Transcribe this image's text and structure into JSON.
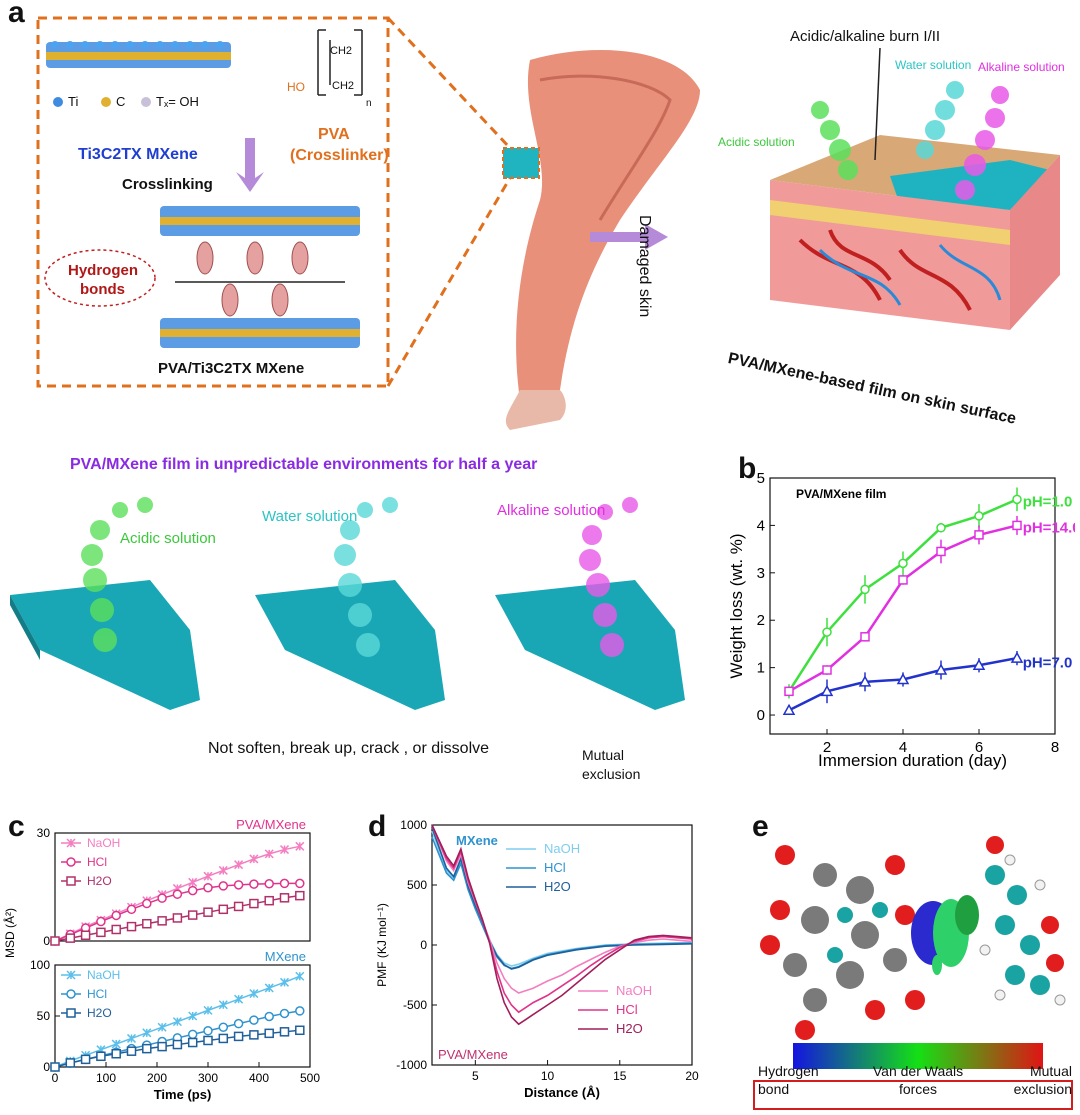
{
  "panels": {
    "a": {
      "label": "a",
      "legend_ti": "Ti",
      "legend_c": "C",
      "legend_tx": "Tₓ= OH",
      "mxene_name": "Ti3C2TX MXene",
      "pva_name": "PVA",
      "pva_role": "(Crosslinker)",
      "pva_struct_ch2a": "CH2",
      "pva_struct_ch2b": "CH2",
      "pva_struct_ho": "HO",
      "pva_struct_n": "n",
      "crosslinking": "Crosslinking",
      "hbond_line1": "Hydrogen",
      "hbond_line2": "bonds",
      "composite_name": "PVA/Ti3C2TX MXene",
      "burn_label": "Acidic/alkaline burn I/II",
      "water_solution": "Water solution",
      "alkaline_solution": "Alkaline solution",
      "acidic_solution": "Acidic solution",
      "damaged_skin": "Damaged skin",
      "film_caption": "PVA/MXene-based film on skin surface",
      "env_title": "PVA/MXene film in unpredictable environments for half a year",
      "env_acidic": "Acidic solution",
      "env_water": "Water solution",
      "env_alkaline": "Alkaline solution",
      "not_soften": "Not soften, break up, crack , or dissolve",
      "mutual_exclusion": "Mutual exclusion"
    },
    "b_label": "b",
    "c_label": "c",
    "d_label": "d",
    "e_label": "e",
    "e": {
      "hbond": "Hydrogen bond",
      "vdw": "Van der Waals forces",
      "mutual": "Mutual exclusion"
    }
  },
  "colors": {
    "orange_dash": "#e0701d",
    "acidic_green": "#3cc83c",
    "water_cyan": "#2cc4c4",
    "alkaline_magenta": "#e030e0",
    "blue_text": "#1f3fd0",
    "purple_text": "#8a2be2",
    "dark_red": "#b01818",
    "film_teal": "#1aa7b5"
  },
  "chart_data": [
    {
      "id": "b",
      "type": "line",
      "title": "PVA/MXene film",
      "xlabel": "Immersion duration (day)",
      "ylabel": "Weight loss (wt. %)",
      "xlim": [
        0.5,
        8
      ],
      "ylim": [
        -0.4,
        5
      ],
      "xticks": [
        2,
        4,
        6,
        8
      ],
      "yticks": [
        0,
        1,
        2,
        3,
        4,
        5
      ],
      "x": [
        1,
        2,
        3,
        4,
        5,
        6,
        7
      ],
      "series": [
        {
          "name": "pH=1.0",
          "color": "#3ee03e",
          "marker": "circle",
          "values": [
            0.5,
            1.75,
            2.65,
            3.2,
            3.95,
            4.2,
            4.55
          ],
          "errors": [
            0.15,
            0.3,
            0.3,
            0.25,
            0.1,
            0.25,
            0.25
          ]
        },
        {
          "name": "pH=14.0",
          "color": "#e030e0",
          "marker": "square",
          "values": [
            0.5,
            0.95,
            1.65,
            2.85,
            3.45,
            3.8,
            4.0
          ],
          "errors": [
            0.1,
            0.1,
            0.1,
            0.1,
            0.25,
            0.2,
            0.2
          ]
        },
        {
          "name": "pH=7.0",
          "color": "#2233cc",
          "marker": "triangle",
          "values": [
            0.1,
            0.5,
            0.7,
            0.75,
            0.95,
            1.05,
            1.2
          ],
          "errors": [
            0.1,
            0.25,
            0.2,
            0.15,
            0.2,
            0.15,
            0.15
          ]
        }
      ]
    },
    {
      "id": "c-top",
      "type": "line",
      "title": "PVA/MXene",
      "xlabel": "",
      "ylabel": "",
      "xlim": [
        0,
        500
      ],
      "ylim": [
        0,
        30
      ],
      "yticks": [
        0,
        30
      ],
      "x": [
        0,
        30,
        60,
        90,
        120,
        150,
        180,
        210,
        240,
        270,
        300,
        330,
        360,
        390,
        420,
        450,
        480
      ],
      "series": [
        {
          "name": "NaOH",
          "color": "#f37ec0",
          "marker": "star",
          "values": [
            0,
            2.0,
            4.0,
            5.8,
            7.6,
            9.4,
            11.2,
            12.9,
            14.6,
            16.3,
            18.0,
            19.6,
            21.2,
            22.8,
            24.2,
            25.4,
            26.3
          ]
        },
        {
          "name": "HCl",
          "color": "#e0338a",
          "marker": "circle",
          "values": [
            0,
            1.8,
            3.6,
            5.4,
            7.1,
            8.8,
            10.4,
            11.9,
            13.0,
            14.0,
            14.8,
            15.3,
            15.6,
            15.8,
            15.9,
            16.0,
            16.0
          ]
        },
        {
          "name": "H2O",
          "color": "#b0306a",
          "marker": "square",
          "values": [
            0,
            0.8,
            1.6,
            2.4,
            3.2,
            4.0,
            4.8,
            5.6,
            6.4,
            7.2,
            8.0,
            8.8,
            9.6,
            10.4,
            11.2,
            12.0,
            12.6
          ]
        }
      ]
    },
    {
      "id": "c-bottom",
      "type": "line",
      "title": "MXene",
      "xlabel": "Time (ps)",
      "ylabel": "MSD (Å²)",
      "xlim": [
        0,
        500
      ],
      "ylim": [
        0,
        100
      ],
      "xticks": [
        0,
        100,
        200,
        300,
        400,
        500
      ],
      "yticks": [
        0,
        50,
        100
      ],
      "x": [
        0,
        30,
        60,
        90,
        120,
        150,
        180,
        210,
        240,
        270,
        300,
        330,
        360,
        390,
        420,
        450,
        480
      ],
      "series": [
        {
          "name": "NaOH",
          "color": "#5bbfea",
          "marker": "star",
          "values": [
            0,
            6,
            11.5,
            17,
            22.5,
            28,
            33.5,
            39,
            44.5,
            50,
            55.5,
            61,
            66.5,
            72,
            77.5,
            83,
            89
          ]
        },
        {
          "name": "HCl",
          "color": "#2f93cf",
          "marker": "circle",
          "values": [
            0,
            3.8,
            7.5,
            11,
            14.5,
            18,
            21.5,
            25,
            28.5,
            32,
            35.5,
            39,
            42.5,
            46,
            49.5,
            52.5,
            55
          ]
        },
        {
          "name": "H2O",
          "color": "#1f5f9a",
          "marker": "square",
          "values": [
            0,
            4,
            7.5,
            10.5,
            13,
            15.5,
            18,
            20,
            22,
            24,
            26,
            28,
            30,
            31.5,
            33,
            34.5,
            36
          ]
        }
      ]
    },
    {
      "id": "d",
      "type": "line",
      "title": "",
      "xlabel": "Distance (Å)",
      "ylabel": "PMF (KJ mol⁻¹)",
      "xlim": [
        2,
        20
      ],
      "ylim": [
        -1000,
        1000
      ],
      "xticks": [
        5,
        10,
        15,
        20
      ],
      "yticks": [
        -1000,
        -500,
        0,
        500,
        1000
      ],
      "annotations": [
        "MXene",
        "PVA/MXene"
      ],
      "series": [
        {
          "name": "NaOH",
          "group": "MXene",
          "color": "#7fcdef",
          "x": [
            2.0,
            3.0,
            3.5,
            4.0,
            4.5,
            5.0,
            5.5,
            6.0,
            6.5,
            7.0,
            7.5,
            8.0,
            9.0,
            10.0,
            12.0,
            14.0,
            16.0,
            18.0,
            20.0
          ],
          "values": [
            950,
            620,
            560,
            700,
            480,
            320,
            180,
            40,
            -80,
            -150,
            -175,
            -160,
            -110,
            -70,
            -30,
            0,
            10,
            15,
            20
          ]
        },
        {
          "name": "HCl",
          "group": "MXene",
          "color": "#2f93cf",
          "x": [
            2.0,
            3.0,
            3.5,
            4.0,
            4.5,
            5.0,
            5.5,
            6.0,
            6.5,
            7.0,
            7.5,
            8.0,
            9.0,
            10.0,
            12.0,
            14.0,
            16.0,
            18.0,
            20.0
          ],
          "values": [
            900,
            600,
            540,
            680,
            460,
            300,
            160,
            20,
            -100,
            -170,
            -195,
            -180,
            -120,
            -80,
            -35,
            -5,
            5,
            10,
            15
          ]
        },
        {
          "name": "H2O",
          "group": "MXene",
          "color": "#1f5f9a",
          "x": [
            2.0,
            3.0,
            3.5,
            4.0,
            4.5,
            5.0,
            5.5,
            6.0,
            6.5,
            7.0,
            7.5,
            8.0,
            9.0,
            10.0,
            12.0,
            14.0,
            16.0,
            18.0,
            20.0
          ],
          "values": [
            980,
            640,
            570,
            720,
            490,
            330,
            190,
            30,
            -90,
            -165,
            -200,
            -185,
            -125,
            -85,
            -40,
            -10,
            0,
            5,
            10
          ]
        },
        {
          "name": "NaOH",
          "group": "PVA/MXene",
          "color": "#f37ec0",
          "x": [
            2.0,
            3.0,
            3.5,
            4.0,
            4.5,
            5.0,
            5.5,
            6.0,
            6.5,
            7.0,
            7.5,
            8.0,
            8.5,
            9.0,
            10.0,
            11.0,
            12.0,
            13.0,
            14.0,
            15.0,
            16.0,
            17.0,
            18.0,
            19.0,
            20.0
          ],
          "values": [
            1000,
            700,
            620,
            760,
            520,
            360,
            200,
            40,
            -150,
            -280,
            -360,
            -400,
            -380,
            -360,
            -300,
            -250,
            -180,
            -120,
            -60,
            -10,
            20,
            40,
            50,
            40,
            30
          ]
        },
        {
          "name": "HCl",
          "group": "PVA/MXene",
          "color": "#e0338a",
          "x": [
            2.0,
            3.0,
            3.5,
            4.0,
            4.5,
            5.0,
            5.5,
            6.0,
            6.5,
            7.0,
            7.5,
            8.0,
            8.5,
            9.0,
            10.0,
            11.0,
            12.0,
            13.0,
            14.0,
            15.0,
            16.0,
            17.0,
            18.0,
            19.0,
            20.0
          ],
          "values": [
            1000,
            720,
            640,
            780,
            540,
            370,
            200,
            20,
            -220,
            -400,
            -500,
            -560,
            -520,
            -480,
            -420,
            -340,
            -260,
            -170,
            -90,
            -20,
            30,
            60,
            70,
            60,
            50
          ]
        },
        {
          "name": "H2O",
          "group": "PVA/MXene",
          "color": "#a01e5a",
          "x": [
            2.0,
            3.0,
            3.5,
            4.0,
            4.5,
            5.0,
            5.5,
            6.0,
            6.5,
            7.0,
            7.5,
            8.0,
            8.5,
            9.0,
            10.0,
            11.0,
            12.0,
            13.0,
            14.0,
            15.0,
            16.0,
            17.0,
            18.0,
            19.0,
            20.0
          ],
          "values": [
            1000,
            740,
            660,
            800,
            560,
            380,
            210,
            10,
            -280,
            -480,
            -600,
            -660,
            -620,
            -580,
            -500,
            -420,
            -320,
            -220,
            -120,
            -40,
            40,
            70,
            80,
            70,
            60
          ]
        }
      ]
    }
  ]
}
